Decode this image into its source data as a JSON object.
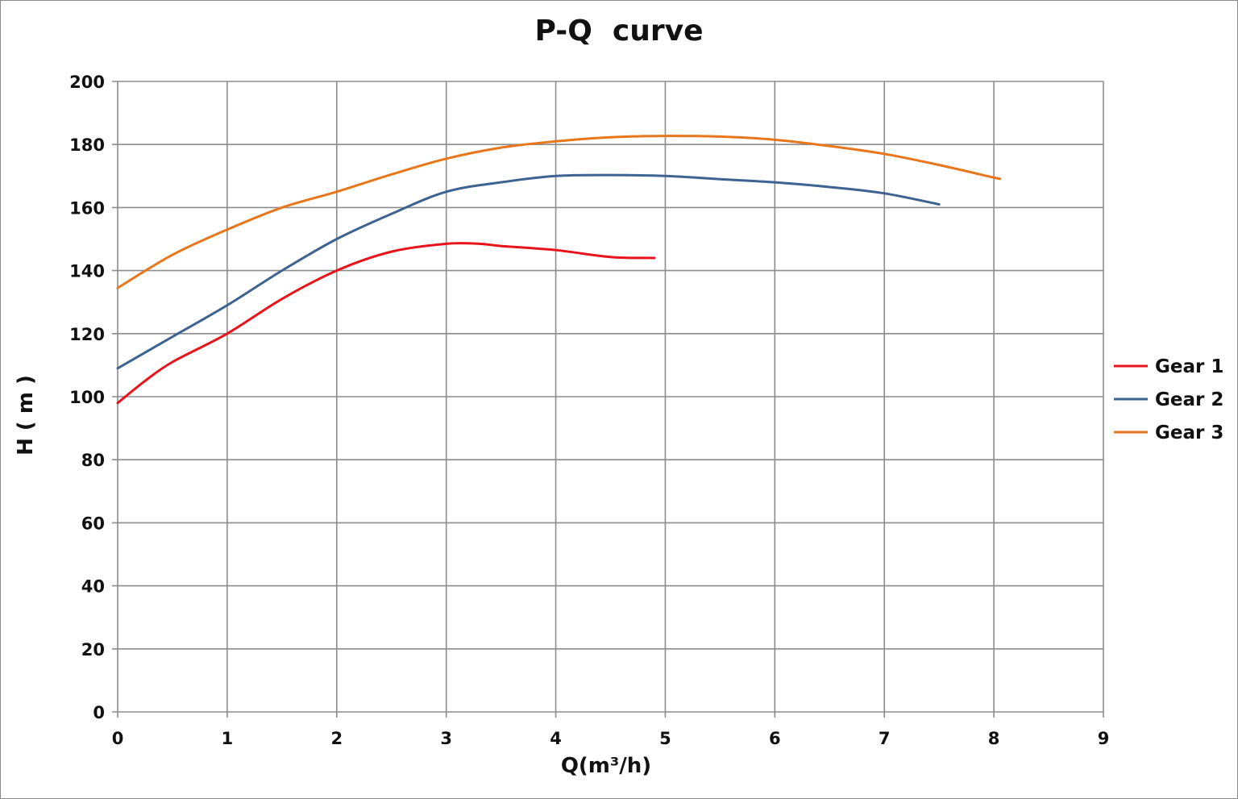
{
  "chart_data": {
    "type": "line",
    "title": "P-Q  curve",
    "xlabel": "Q(m³/h)",
    "ylabel": "H ( m )",
    "xlim": [
      0,
      9
    ],
    "ylim": [
      0,
      200
    ],
    "x_ticks": [
      "0",
      "1",
      "2",
      "3",
      "4",
      "5",
      "6",
      "7",
      "8",
      "9"
    ],
    "y_ticks": [
      "0",
      "20",
      "40",
      "60",
      "80",
      "100",
      "120",
      "140",
      "160",
      "180",
      "200"
    ],
    "grid": true,
    "legend_position": "right",
    "series": [
      {
        "name": "Gear 1",
        "color": "#e8141c",
        "points": [
          [
            0,
            98
          ],
          [
            0.25,
            105
          ],
          [
            0.5,
            111
          ],
          [
            1,
            120
          ],
          [
            1.5,
            131
          ],
          [
            2,
            140
          ],
          [
            2.5,
            146
          ],
          [
            3,
            148.5
          ],
          [
            3.3,
            148.5
          ],
          [
            3.5,
            147.8
          ],
          [
            4,
            146.5
          ],
          [
            4.5,
            144.3
          ],
          [
            4.9,
            144
          ]
        ]
      },
      {
        "name": "Gear 2",
        "color": "#3d6391",
        "points": [
          [
            0,
            109
          ],
          [
            0.5,
            119
          ],
          [
            1,
            129
          ],
          [
            1.5,
            140
          ],
          [
            2,
            150
          ],
          [
            2.5,
            158
          ],
          [
            3,
            165
          ],
          [
            3.5,
            168
          ],
          [
            4,
            170
          ],
          [
            4.5,
            170.3
          ],
          [
            5,
            170
          ],
          [
            5.5,
            169
          ],
          [
            6,
            168
          ],
          [
            6.5,
            166.5
          ],
          [
            7,
            164.5
          ],
          [
            7.5,
            161
          ]
        ]
      },
      {
        "name": "Gear 3",
        "color": "#e8761b",
        "points": [
          [
            0,
            134.5
          ],
          [
            0.5,
            145
          ],
          [
            1,
            153
          ],
          [
            1.5,
            160
          ],
          [
            2,
            165
          ],
          [
            2.5,
            170.5
          ],
          [
            3,
            175.5
          ],
          [
            3.5,
            179
          ],
          [
            4,
            181
          ],
          [
            4.5,
            182.3
          ],
          [
            5,
            182.7
          ],
          [
            5.5,
            182.5
          ],
          [
            6,
            181.5
          ],
          [
            6.5,
            179.5
          ],
          [
            7,
            177
          ],
          [
            7.5,
            173.5
          ],
          [
            8,
            169.5
          ],
          [
            8.05,
            169.2
          ]
        ]
      }
    ]
  }
}
